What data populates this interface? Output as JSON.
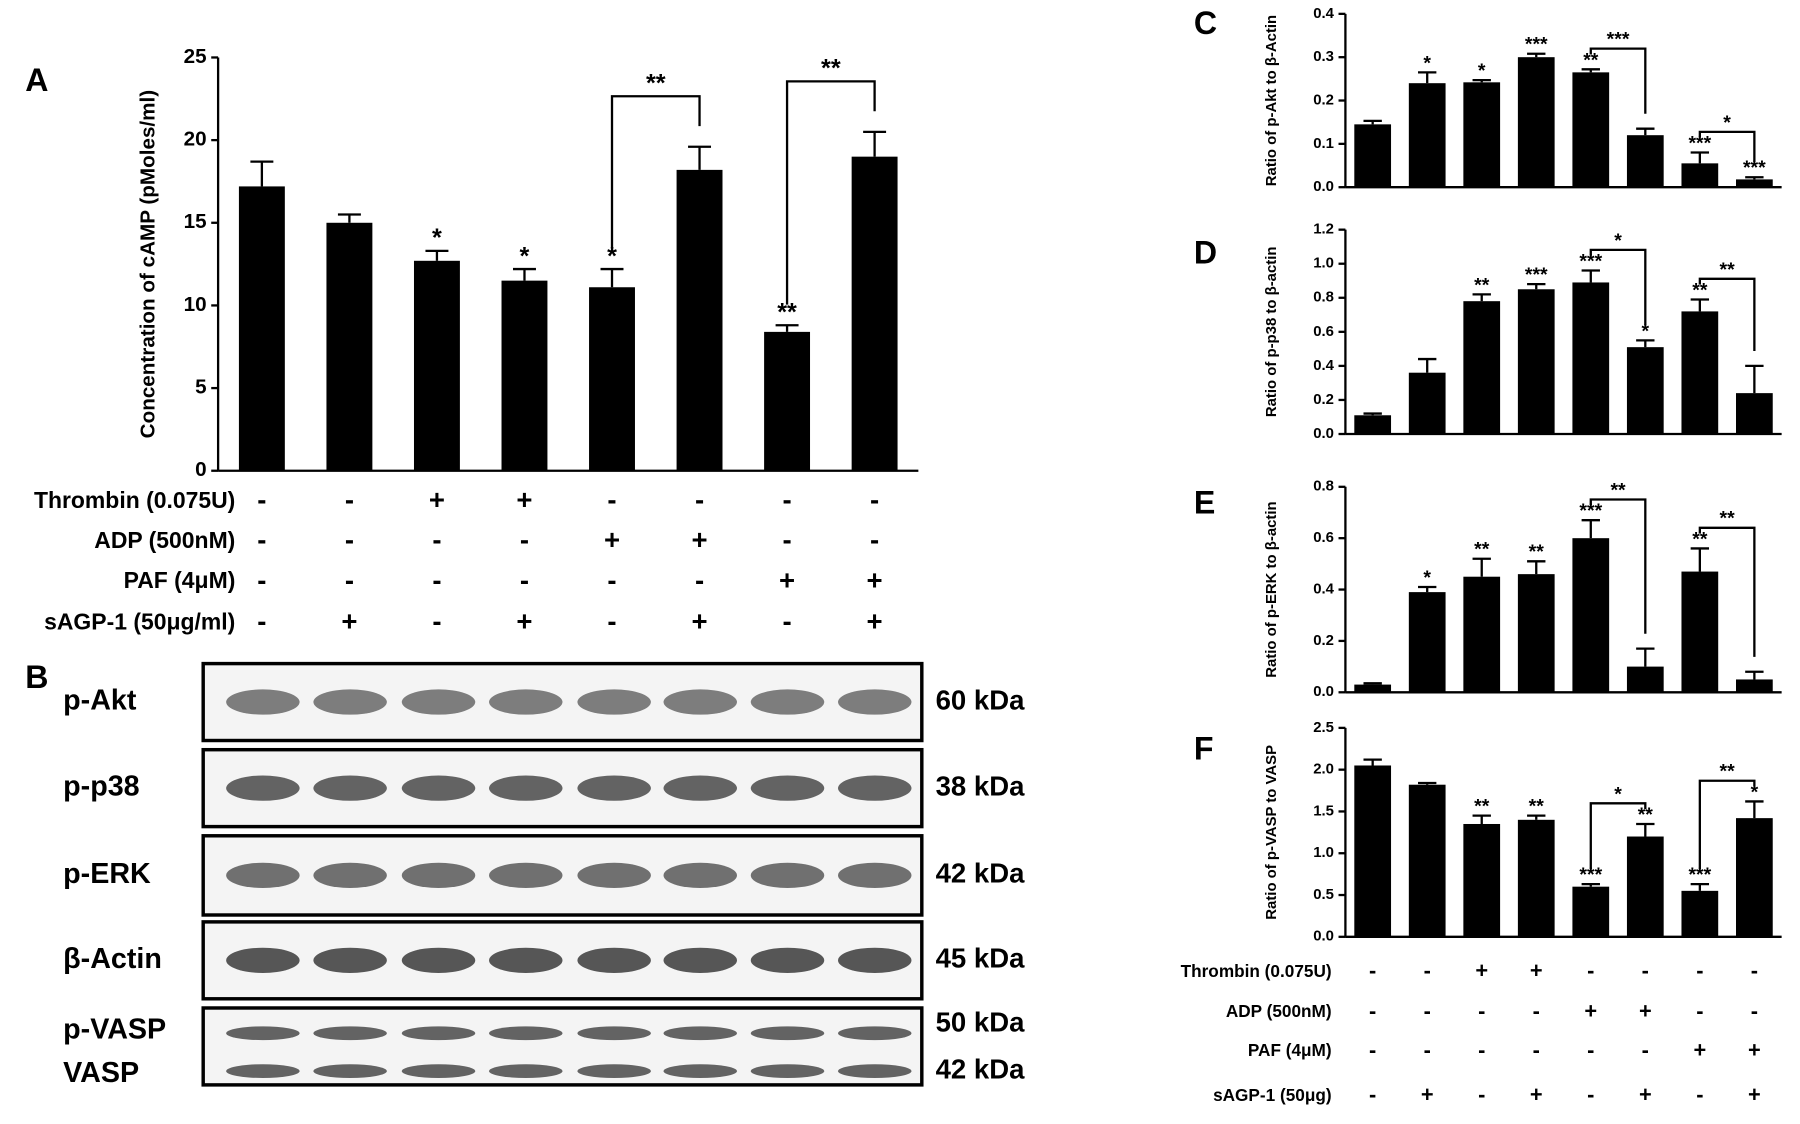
{
  "chart_data": [
    {
      "type": "bar",
      "panel": "A",
      "y_label": "Concentration of cAMP (pMoles/ml)",
      "color": "#000000",
      "values": [
        17.2,
        15,
        12.7,
        11.5,
        11.1,
        18.2,
        8.4,
        19
      ],
      "errors": [
        1.5,
        0.5,
        0.6,
        0.7,
        1.1,
        1.4,
        0.4,
        1.5
      ],
      "annotations": [
        null,
        null,
        "*",
        "*",
        "*",
        null,
        "**",
        null
      ],
      "brackets": [
        {
          "from": 4,
          "to": 5,
          "label": "**"
        },
        {
          "from": 6,
          "to": 7,
          "label": "**"
        }
      ],
      "ylim": [
        0,
        25
      ],
      "yticks": [
        0,
        5,
        10,
        15,
        20,
        25
      ],
      "treatments": [
        {
          "name": "Thrombin (0.075U)",
          "signs": [
            "-",
            "-",
            "+",
            "+",
            "-",
            "-",
            "-",
            "-"
          ]
        },
        {
          "name": "ADP (500nM)",
          "signs": [
            "-",
            "-",
            "-",
            "-",
            "+",
            "+",
            "-",
            "-"
          ]
        },
        {
          "name": "PAF (4μM)",
          "signs": [
            "-",
            "-",
            "-",
            "-",
            "-",
            "-",
            "+",
            "+"
          ]
        },
        {
          "name": "sAGP-1 (50μg/ml)",
          "signs": [
            "-",
            "+",
            "-",
            "+",
            "-",
            "+",
            "-",
            "+"
          ]
        }
      ]
    },
    {
      "type": "bar",
      "panel": "C",
      "y_label": "Ratio of p-Akt to β-Actin",
      "color": "#000000",
      "values": [
        0.145,
        0.24,
        0.242,
        0.3,
        0.265,
        0.12,
        0.055,
        0.018
      ],
      "errors": [
        0.008,
        0.025,
        0.005,
        0.008,
        0.007,
        0.015,
        0.025,
        0.005
      ],
      "annotations": [
        null,
        "*",
        "*",
        "***",
        "**",
        null,
        "***",
        "***"
      ],
      "brackets": [
        {
          "from": 4,
          "to": 5,
          "label": "***"
        },
        {
          "from": 6,
          "to": 7,
          "label": "*"
        }
      ],
      "ylim": [
        0,
        0.4
      ],
      "yticks": [
        {
          "value": 0,
          "label": "0.0"
        },
        0.1,
        0.2,
        0.3,
        0.4
      ]
    },
    {
      "type": "bar",
      "panel": "D",
      "y_label": "Ratio of p-p38 to β-actin",
      "color": "#000000",
      "values": [
        0.11,
        0.36,
        0.78,
        0.85,
        0.89,
        0.51,
        0.72,
        0.24
      ],
      "errors": [
        0.01,
        0.08,
        0.04,
        0.03,
        0.07,
        0.04,
        0.07,
        0.16
      ],
      "annotations": [
        null,
        null,
        "**",
        "***",
        "***",
        "*",
        "**",
        null
      ],
      "brackets": [
        {
          "from": 4,
          "to": 5,
          "label": "*"
        },
        {
          "from": 6,
          "to": 7,
          "label": "**"
        }
      ],
      "ylim": [
        0,
        1.2
      ],
      "yticks": [
        {
          "value": 0,
          "label": "0.0"
        },
        0.2,
        0.4,
        0.6,
        0.8,
        {
          "value": 1,
          "label": "1.0"
        },
        1.2
      ]
    },
    {
      "type": "bar",
      "panel": "E",
      "y_label": "Ratio of p-ERK to β-actin",
      "color": "#000000",
      "values": [
        0.03,
        0.39,
        0.45,
        0.46,
        0.6,
        0.1,
        0.47,
        0.05
      ],
      "errors": [
        0.005,
        0.02,
        0.07,
        0.05,
        0.07,
        0.07,
        0.09,
        0.03
      ],
      "annotations": [
        null,
        "*",
        "**",
        "**",
        "***",
        null,
        "**",
        null
      ],
      "brackets": [
        {
          "from": 4,
          "to": 5,
          "label": "**"
        },
        {
          "from": 6,
          "to": 7,
          "label": "**"
        }
      ],
      "ylim": [
        0,
        0.8
      ],
      "yticks": [
        {
          "value": 0,
          "label": "0.0"
        },
        0.2,
        0.4,
        0.6,
        0.8
      ]
    },
    {
      "type": "bar",
      "panel": "F",
      "y_label": "Ratio of p-VASP to VASP",
      "color": "#000000",
      "values": [
        2.05,
        1.82,
        1.35,
        1.4,
        0.6,
        1.2,
        0.55,
        1.42
      ],
      "errors": [
        0.07,
        0.02,
        0.1,
        0.05,
        0.03,
        0.15,
        0.08,
        0.2
      ],
      "annotations": [
        null,
        null,
        "**",
        "**",
        "***",
        "**",
        "***",
        "*"
      ],
      "brackets": [
        {
          "from": 4,
          "to": 5,
          "label": "*"
        },
        {
          "from": 6,
          "to": 7,
          "label": "**"
        }
      ],
      "ylim": [
        0,
        2.5
      ],
      "yticks": [
        {
          "value": 0,
          "label": "0.0"
        },
        0.5,
        {
          "value": 1,
          "label": "1.0"
        },
        1.5,
        {
          "value": 2,
          "label": "2.0"
        },
        2.5
      ],
      "treatments": [
        {
          "name": "Thrombin (0.075U)",
          "signs": [
            "-",
            "-",
            "+",
            "+",
            "-",
            "-",
            "-",
            "-"
          ]
        },
        {
          "name": "ADP (500nM)",
          "signs": [
            "-",
            "-",
            "-",
            "-",
            "+",
            "+",
            "-",
            "-"
          ]
        },
        {
          "name": "PAF (4μM)",
          "signs": [
            "-",
            "-",
            "-",
            "-",
            "-",
            "-",
            "+",
            "+"
          ]
        },
        {
          "name": "sAGP-1 (50μg)",
          "signs": [
            "-",
            "+",
            "-",
            "+",
            "-",
            "+",
            "-",
            "+"
          ]
        }
      ]
    }
  ],
  "blot": {
    "panel": "B",
    "rows": [
      {
        "label": "p-Akt",
        "size": "60 kDa"
      },
      {
        "label": "p-p38",
        "size": "38 kDa"
      },
      {
        "label": "p-ERK",
        "size": "42 kDa"
      },
      {
        "label": "β-Actin",
        "size": "45 kDa"
      },
      {
        "label": "p-VASP",
        "size": "50 kDa"
      },
      {
        "label": "VASP",
        "size": "42 kDa"
      }
    ]
  }
}
